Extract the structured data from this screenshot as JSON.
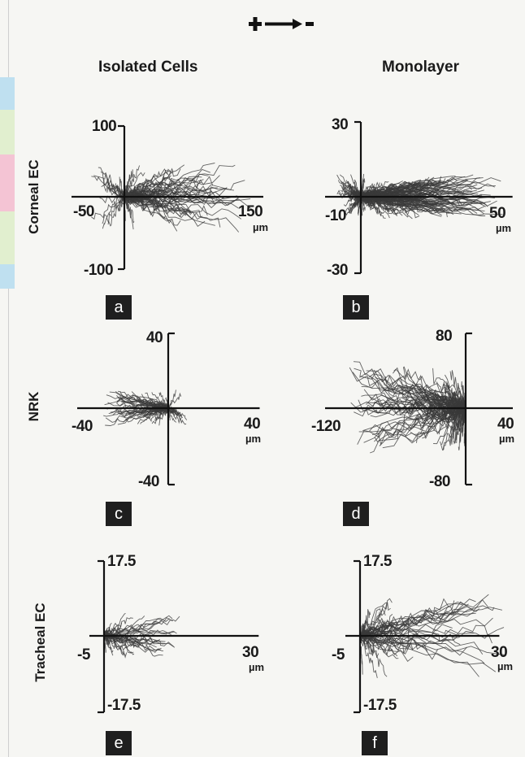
{
  "header": {
    "polarity_symbol": "+ → -"
  },
  "columns": [
    "Isolated Cells",
    "Monolayer"
  ],
  "rows": [
    "Corneal EC",
    "NRK",
    "Tracheal EC"
  ],
  "colors": {
    "tracks": "#3a3a3a",
    "axes": "#111111",
    "label_box": "#1f1f1f",
    "background": "#f6f6f3"
  },
  "chart_data": [
    {
      "type": "line",
      "panel": "a",
      "row": "Corneal EC",
      "column": "Isolated Cells",
      "x_label_min": "-50",
      "x_label_max": "150",
      "y_label_max": "100",
      "y_label_min": "-100",
      "unit": "µm",
      "xlim": [
        -50,
        150
      ],
      "ylim": [
        -100,
        100
      ],
      "n_tracks": 90,
      "x_extent": [
        -40,
        140
      ],
      "y_spread": 45,
      "seed": 11
    },
    {
      "type": "line",
      "panel": "b",
      "row": "Corneal EC",
      "column": "Monolayer",
      "x_label_min": "-10",
      "x_label_max": "50",
      "y_label_max": "30",
      "y_label_min": "-30",
      "unit": "µm",
      "xlim": [
        -10,
        50
      ],
      "ylim": [
        -30,
        30
      ],
      "n_tracks": 200,
      "x_extent": [
        -8,
        46
      ],
      "y_spread": 8,
      "seed": 23
    },
    {
      "type": "line",
      "panel": "c",
      "row": "NRK",
      "column": "Isolated Cells",
      "x_label_min": "-40",
      "x_label_max": "40",
      "y_label_max": "40",
      "y_label_min": "-40",
      "unit": "µm",
      "xlim": [
        -40,
        40
      ],
      "ylim": [
        -40,
        40
      ],
      "n_tracks": 70,
      "x_extent": [
        -28,
        8
      ],
      "y_spread": 9,
      "seed": 37
    },
    {
      "type": "line",
      "panel": "d",
      "row": "NRK",
      "column": "Monolayer",
      "x_label_min": "-120",
      "x_label_max": "40",
      "y_label_max": "80",
      "y_label_min": "-80",
      "unit": "µm",
      "xlim": [
        -120,
        40
      ],
      "ylim": [
        -80,
        80
      ],
      "n_tracks": 110,
      "x_extent": [
        -105,
        0
      ],
      "y_spread": 45,
      "seed": 41
    },
    {
      "type": "line",
      "panel": "e",
      "row": "Tracheal EC",
      "column": "Isolated Cells",
      "x_label_min": "-5",
      "x_label_max": "30",
      "y_label_max": "17.5",
      "y_label_min": "-17.5",
      "unit": "µm",
      "xlim": [
        -5,
        30
      ],
      "ylim": [
        -17.5,
        17.5
      ],
      "n_tracks": 45,
      "x_extent": [
        0,
        16
      ],
      "y_spread": 5,
      "seed": 53
    },
    {
      "type": "line",
      "panel": "f",
      "row": "Tracheal EC",
      "column": "Monolayer",
      "x_label_min": "-5",
      "x_label_max": "30",
      "y_label_max": "17.5",
      "y_label_min": "-17.5",
      "unit": "µm",
      "xlim": [
        -5,
        30
      ],
      "ylim": [
        -17.5,
        17.5
      ],
      "n_tracks": 55,
      "x_extent": [
        0,
        31
      ],
      "y_spread": 9,
      "seed": 67
    }
  ]
}
